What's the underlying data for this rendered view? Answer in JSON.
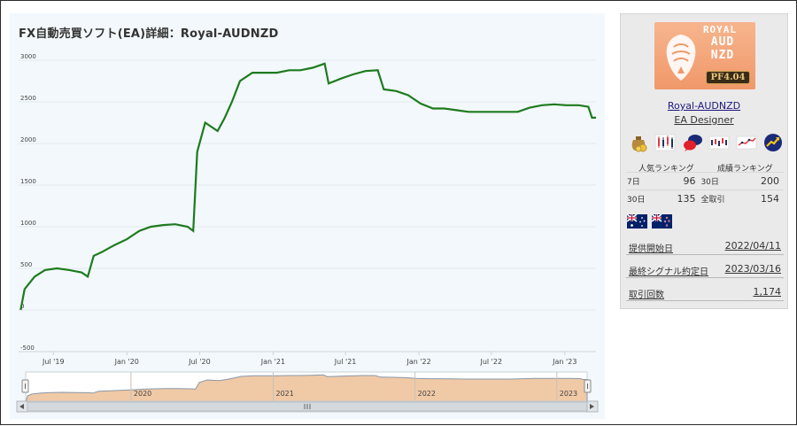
{
  "chart": {
    "title": "FX自動売買ソフト(EA)詳細：Royal-AUDNZD",
    "line_color": "#1e7a1e",
    "navigator_fill": "#f0c9a6",
    "navigator_stroke": "#8899aa"
  },
  "chart_data": {
    "type": "line",
    "x_unit": "month",
    "x_ticks": [
      "Jul '19",
      "Jan '20",
      "Jul '20",
      "Jan '21",
      "Jul '21",
      "Jan '22",
      "Jul '22",
      "Jan '23"
    ],
    "y_ticks": [
      "3000",
      "2500",
      "2000",
      "1500",
      "1000",
      "500",
      "0",
      "-500"
    ],
    "ylim": [
      -500,
      3000
    ],
    "navigator_labels": [
      "2020",
      "2021",
      "2022",
      "2023"
    ],
    "series": [
      {
        "points": [
          [
            "2019-04-10",
            0
          ],
          [
            "2019-04-20",
            250
          ],
          [
            "2019-05-15",
            400
          ],
          [
            "2019-06-10",
            480
          ],
          [
            "2019-07-10",
            500
          ],
          [
            "2019-08-10",
            480
          ],
          [
            "2019-09-10",
            450
          ],
          [
            "2019-09-25",
            400
          ],
          [
            "2019-10-10",
            650
          ],
          [
            "2019-11-01",
            700
          ],
          [
            "2019-12-01",
            780
          ],
          [
            "2020-01-01",
            850
          ],
          [
            "2020-02-01",
            950
          ],
          [
            "2020-03-01",
            1000
          ],
          [
            "2020-04-01",
            1020
          ],
          [
            "2020-05-01",
            1030
          ],
          [
            "2020-06-01",
            1000
          ],
          [
            "2020-06-15",
            950
          ],
          [
            "2020-06-25",
            1900
          ],
          [
            "2020-07-15",
            2250
          ],
          [
            "2020-08-15",
            2150
          ],
          [
            "2020-09-01",
            2300
          ],
          [
            "2020-09-20",
            2500
          ],
          [
            "2020-10-10",
            2750
          ],
          [
            "2020-11-10",
            2850
          ],
          [
            "2020-12-10",
            2850
          ],
          [
            "2021-01-10",
            2850
          ],
          [
            "2021-02-10",
            2880
          ],
          [
            "2021-03-10",
            2880
          ],
          [
            "2021-04-10",
            2910
          ],
          [
            "2021-05-10",
            2960
          ],
          [
            "2021-05-20",
            2720
          ],
          [
            "2021-06-20",
            2780
          ],
          [
            "2021-07-20",
            2830
          ],
          [
            "2021-08-20",
            2870
          ],
          [
            "2021-09-20",
            2880
          ],
          [
            "2021-10-05",
            2650
          ],
          [
            "2021-11-05",
            2630
          ],
          [
            "2021-12-05",
            2580
          ],
          [
            "2022-01-05",
            2480
          ],
          [
            "2022-02-05",
            2420
          ],
          [
            "2022-03-05",
            2420
          ],
          [
            "2022-04-05",
            2400
          ],
          [
            "2022-05-05",
            2380
          ],
          [
            "2022-07-05",
            2380
          ],
          [
            "2022-09-05",
            2380
          ],
          [
            "2022-10-05",
            2430
          ],
          [
            "2022-11-05",
            2460
          ],
          [
            "2022-12-05",
            2470
          ],
          [
            "2023-01-05",
            2460
          ],
          [
            "2023-02-05",
            2460
          ],
          [
            "2023-03-01",
            2440
          ],
          [
            "2023-03-10",
            2310
          ],
          [
            "2023-03-20",
            2310
          ]
        ]
      }
    ]
  },
  "sidebar": {
    "logo": {
      "text_lines": [
        "ROYAL",
        "AUD",
        "NZD"
      ],
      "badge": "PF4.04"
    },
    "ea_name": "Royal-AUDNZD",
    "designer": "EA Designer",
    "badges": [
      "money-bag-icon",
      "candlestick-icon",
      "chat-bubbles-icon",
      "candlestick-icon",
      "trend-chart-icon",
      "upward-trend-icon"
    ],
    "ranking": {
      "popularity_title": "人気ランキング",
      "performance_title": "成績ランキング",
      "rows": [
        {
          "l_label": "7日",
          "l_value": "96",
          "r_label": "30日",
          "r_value": "200"
        },
        {
          "l_label": "30日",
          "l_value": "135",
          "r_label": "全取引",
          "r_value": "154"
        }
      ]
    },
    "flags": [
      "australia-flag",
      "new-zealand-flag"
    ],
    "info": [
      {
        "label": "提供開始日",
        "value": "2022/04/11"
      },
      {
        "label": "最終シグナル約定日",
        "value": "2023/03/16"
      },
      {
        "label": "取引回数",
        "value": "1,174"
      }
    ]
  }
}
